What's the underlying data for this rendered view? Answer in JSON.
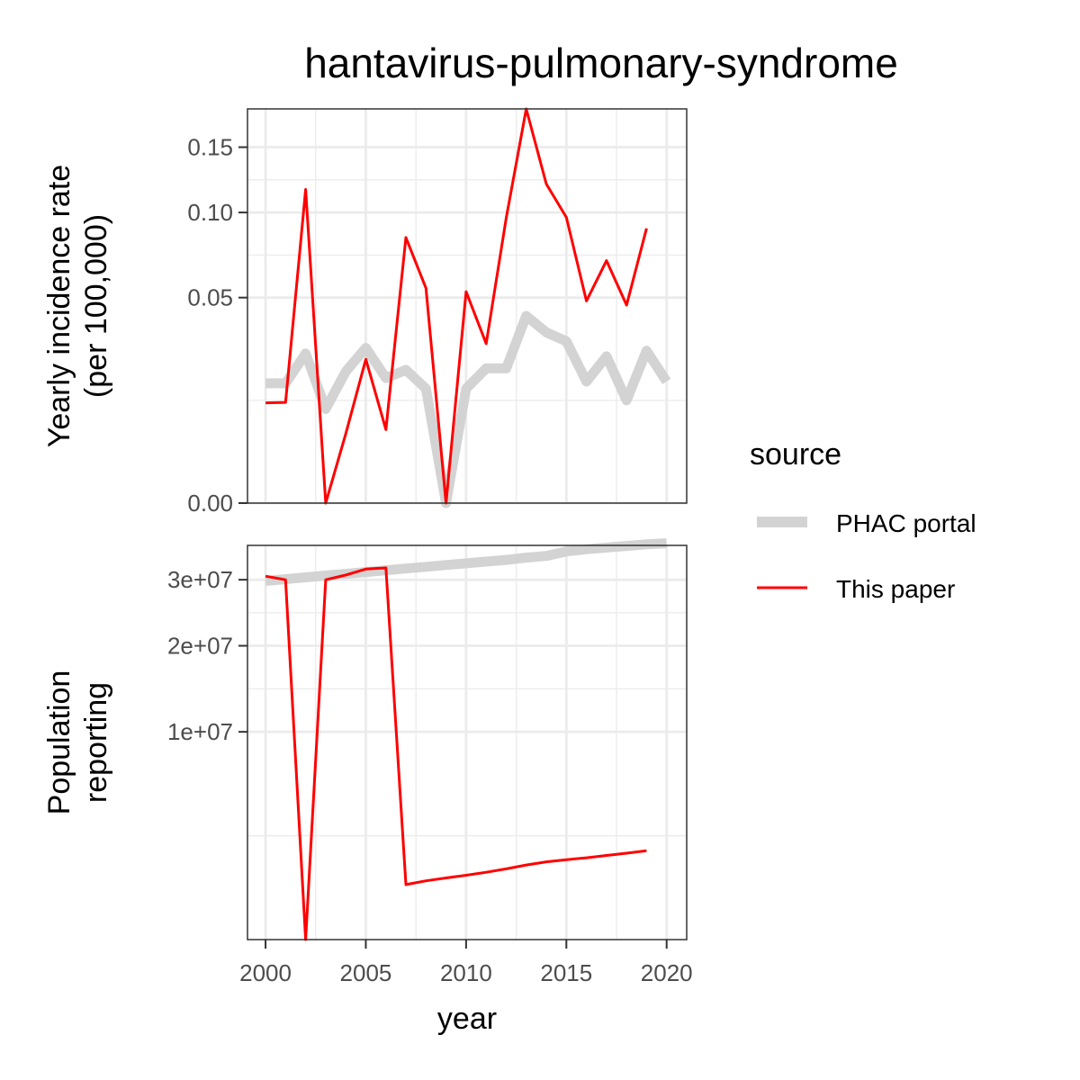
{
  "title": "hantavirus-pulmonary-syndrome",
  "colors": {
    "phac": "#d3d3d3",
    "paper": "#ff0000",
    "grid": "#ebebeb",
    "frame": "#333333",
    "tick_text": "#4d4d4d"
  },
  "legend": {
    "title": "source",
    "items": [
      {
        "label": "PHAC portal",
        "key": "phac"
      },
      {
        "label": "This paper",
        "key": "paper"
      }
    ]
  },
  "chart_data": [
    {
      "type": "line",
      "ylabel": [
        "Yearly incidence rate",
        "(per 100,000)"
      ],
      "y_scale": "sqrt",
      "ylim": [
        0,
        0.184
      ],
      "y_ticks": [
        0,
        0.05,
        0.1,
        0.15
      ],
      "y_tick_labels": [
        "0.00",
        "0.05",
        "0.10",
        "0.15"
      ],
      "series": [
        {
          "name": "PHAC portal",
          "x": [
            2000,
            2001,
            2002,
            2003,
            2004,
            2005,
            2006,
            2007,
            2008,
            2009,
            2010,
            2011,
            2012,
            2013,
            2014,
            2015,
            2016,
            2017,
            2018,
            2019,
            2020
          ],
          "values": [
            0.017,
            0.017,
            0.0265,
            0.0105,
            0.0205,
            0.0285,
            0.0185,
            0.021,
            0.0155,
            0.0,
            0.0155,
            0.0215,
            0.0215,
            0.0415,
            0.0345,
            0.031,
            0.0175,
            0.0255,
            0.0125,
            0.0275,
            0.0175
          ]
        },
        {
          "name": "This paper",
          "x": [
            2000,
            2001,
            2002,
            2003,
            2004,
            2005,
            2006,
            2007,
            2008,
            2009,
            2010,
            2011,
            2012,
            2013,
            2014,
            2015,
            2016,
            2017,
            2018,
            2019
          ],
          "values": [
            0.0119,
            0.012,
            0.1165,
            0.0,
            0.0057,
            0.0245,
            0.0064,
            0.0835,
            0.0547,
            0.0,
            0.0529,
            0.0301,
            0.0964,
            0.184,
            0.1206,
            0.0967,
            0.0484,
            0.0696,
            0.0464,
            0.0894
          ]
        }
      ]
    },
    {
      "type": "line",
      "xlabel": "year",
      "ylabel": [
        "Population",
        "reporting"
      ],
      "y_scale": "sqrt",
      "ylim": [
        0,
        36000000
      ],
      "y_ticks": [
        10000000,
        20000000,
        30000000
      ],
      "y_tick_labels": [
        "1e+07",
        "2e+07",
        "3e+07"
      ],
      "xlim": [
        1999.1,
        2021
      ],
      "x_ticks": [
        2000,
        2005,
        2010,
        2015,
        2020
      ],
      "x_tick_labels": [
        "2000",
        "2005",
        "2010",
        "2015",
        "2020"
      ],
      "series": [
        {
          "name": "PHAC portal",
          "x": [
            2000,
            2001,
            2002,
            2003,
            2004,
            2005,
            2006,
            2007,
            2008,
            2009,
            2010,
            2011,
            2012,
            2013,
            2014,
            2015,
            2016,
            2017,
            2018,
            2019,
            2020
          ],
          "values": [
            29800000,
            30100000,
            30400000,
            30700000,
            31000000,
            31300000,
            31600000,
            31900000,
            32200000,
            32500000,
            32800000,
            33100000,
            33400000,
            33800000,
            34100000,
            34900000,
            35300000,
            35600000,
            35900000,
            36200000,
            36400000
          ]
        },
        {
          "name": "This paper",
          "x": [
            2000,
            2001,
            2002,
            2003,
            2004,
            2005,
            2006,
            2007,
            2008,
            2009,
            2010,
            2011,
            2012,
            2013,
            2014,
            2015,
            2016,
            2017,
            2018,
            2019
          ],
          "values": [
            30600000,
            30000000,
            0,
            30000000,
            30800000,
            31800000,
            32000000,
            700000,
            800000,
            880000,
            960000,
            1050000,
            1160000,
            1290000,
            1400000,
            1480000,
            1550000,
            1640000,
            1730000,
            1830000
          ]
        }
      ]
    }
  ]
}
